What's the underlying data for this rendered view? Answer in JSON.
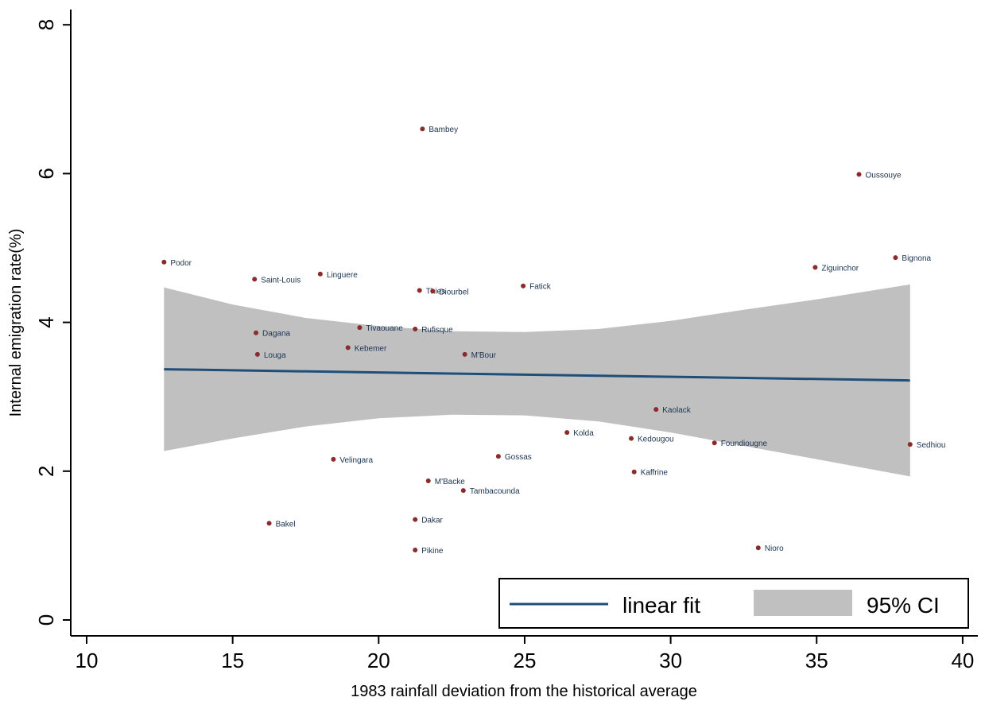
{
  "chart_data": {
    "type": "scatter",
    "xlabel": "1983 rainfall deviation from the historical average",
    "ylabel": "Internal emigration rate(%)",
    "xlim": [
      9.5,
      40.5
    ],
    "ylim": [
      -0.2,
      8.2
    ],
    "x_ticks": [
      10,
      15,
      20,
      25,
      30,
      35,
      40
    ],
    "y_ticks": [
      0,
      2,
      4,
      6,
      8
    ],
    "grid": false,
    "legend_position": "bottom-right",
    "legend": [
      {
        "label": "linear fit",
        "type": "line"
      },
      {
        "label": "95% CI",
        "type": "area"
      }
    ],
    "colors": {
      "points": "#8b2b2b",
      "point_labels": "#1a3350",
      "fit_line": "#1f4e79",
      "ci_band": "#c0c0c0",
      "axis": "#000000"
    },
    "points": [
      {
        "name": "Podor",
        "x": 12.65,
        "y": 4.81
      },
      {
        "name": "Saint-Louis",
        "x": 15.75,
        "y": 4.58
      },
      {
        "name": "Linguere",
        "x": 18.0,
        "y": 4.65
      },
      {
        "name": "Dagana",
        "x": 15.8,
        "y": 3.86
      },
      {
        "name": "Louga",
        "x": 15.85,
        "y": 3.57
      },
      {
        "name": "Bakel",
        "x": 16.25,
        "y": 1.3
      },
      {
        "name": "Velingara",
        "x": 18.45,
        "y": 2.16
      },
      {
        "name": "Kebemer",
        "x": 18.95,
        "y": 3.66
      },
      {
        "name": "Tivaouane",
        "x": 19.35,
        "y": 3.93
      },
      {
        "name": "Rufisque",
        "x": 21.25,
        "y": 3.91
      },
      {
        "name": "Bambey",
        "x": 21.5,
        "y": 6.6
      },
      {
        "name": "Thies",
        "x": 21.4,
        "y": 4.43
      },
      {
        "name": "Diourbel",
        "x": 21.85,
        "y": 4.42
      },
      {
        "name": "M'Bour",
        "x": 22.95,
        "y": 3.57
      },
      {
        "name": "Dakar",
        "x": 21.25,
        "y": 1.35
      },
      {
        "name": "Pikine",
        "x": 21.25,
        "y": 0.94
      },
      {
        "name": "M'Backe",
        "x": 21.7,
        "y": 1.87
      },
      {
        "name": "Tambacounda",
        "x": 22.9,
        "y": 1.74
      },
      {
        "name": "Gossas",
        "x": 24.1,
        "y": 2.2
      },
      {
        "name": "Fatick",
        "x": 24.95,
        "y": 4.49
      },
      {
        "name": "Kolda",
        "x": 26.45,
        "y": 2.52
      },
      {
        "name": "Kedougou",
        "x": 28.65,
        "y": 2.44
      },
      {
        "name": "Kaffrine",
        "x": 28.75,
        "y": 1.99
      },
      {
        "name": "Kaolack",
        "x": 29.5,
        "y": 2.83
      },
      {
        "name": "Foundiougne",
        "x": 31.5,
        "y": 2.38
      },
      {
        "name": "Nioro",
        "x": 33.0,
        "y": 0.97
      },
      {
        "name": "Ziguinchor",
        "x": 34.95,
        "y": 4.74
      },
      {
        "name": "Oussouye",
        "x": 36.45,
        "y": 5.99
      },
      {
        "name": "Bignona",
        "x": 37.7,
        "y": 4.87
      },
      {
        "name": "Sedhiou",
        "x": 38.2,
        "y": 2.36
      }
    ],
    "fit": {
      "x": [
        12.65,
        38.2
      ],
      "y": [
        3.37,
        3.22
      ]
    },
    "ci": {
      "x": [
        12.65,
        15,
        17.5,
        20,
        22.5,
        25,
        27.5,
        30,
        32.5,
        35,
        38.2
      ],
      "upper": [
        4.47,
        4.24,
        4.06,
        3.95,
        3.88,
        3.87,
        3.91,
        4.02,
        4.17,
        4.31,
        4.51
      ],
      "lower": [
        2.27,
        2.44,
        2.6,
        2.71,
        2.76,
        2.75,
        2.67,
        2.52,
        2.34,
        2.16,
        1.93
      ]
    }
  }
}
